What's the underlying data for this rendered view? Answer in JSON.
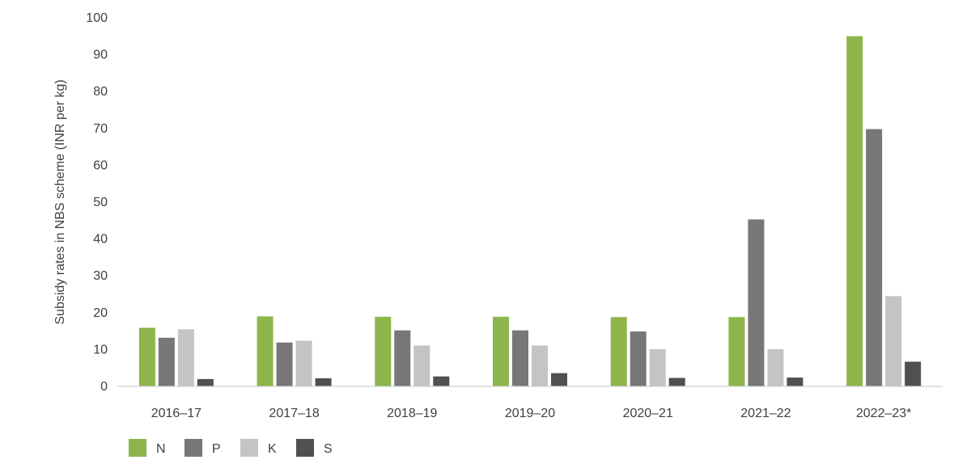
{
  "chart_data": {
    "type": "bar",
    "title": "",
    "xlabel": "",
    "ylabel": "Subsidy rates in NBS scheme (INR per kg)",
    "ylim": [
      0,
      100
    ],
    "yticks": [
      0,
      10,
      20,
      30,
      40,
      50,
      60,
      70,
      80,
      90,
      100
    ],
    "categories": [
      "2016–17",
      "2017–18",
      "2018–19",
      "2019–20",
      "2020–21",
      "2021–22",
      "2022–23*"
    ],
    "series": [
      {
        "name": "N",
        "color": "#8db54b",
        "values": [
          15.9,
          19.0,
          18.9,
          18.9,
          18.8,
          18.8,
          95.0
        ]
      },
      {
        "name": "P",
        "color": "#777777",
        "values": [
          13.2,
          11.9,
          15.2,
          15.2,
          14.9,
          45.3,
          69.8
        ]
      },
      {
        "name": "K",
        "color": "#c4c4c4",
        "values": [
          15.5,
          12.4,
          11.1,
          11.1,
          10.1,
          10.1,
          24.5
        ]
      },
      {
        "name": "S",
        "color": "#505050",
        "values": [
          2.0,
          2.2,
          2.7,
          3.6,
          2.3,
          2.4,
          6.7
        ]
      }
    ],
    "grid": false,
    "legend_position": "bottom-left"
  }
}
